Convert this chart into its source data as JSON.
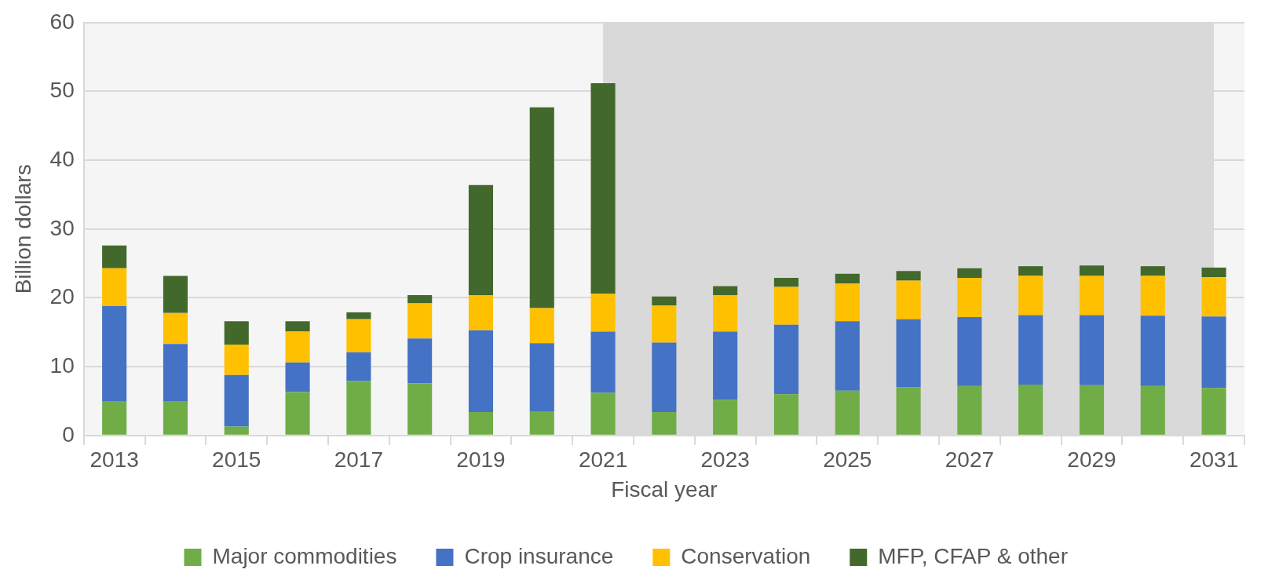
{
  "chart_data": {
    "type": "bar",
    "stacked": true,
    "xlabel": "Fiscal year",
    "ylabel": "Billion dollars",
    "categories": [
      "2013",
      null,
      "2015",
      null,
      "2017",
      null,
      "2019",
      null,
      "2021",
      null,
      "2023",
      null,
      "2025",
      null,
      "2027",
      null,
      "2029",
      null,
      "2031"
    ],
    "series": [
      {
        "name": "Major commodities",
        "color": "#70ad47",
        "values": [
          4.9,
          4.9,
          1.3,
          6.3,
          7.9,
          7.6,
          3.4,
          3.5,
          6.2,
          3.4,
          5.2,
          6.0,
          6.5,
          7.0,
          7.2,
          7.4,
          7.3,
          7.2,
          6.9
        ]
      },
      {
        "name": "Crop insurance",
        "color": "#4472c4",
        "values": [
          13.9,
          8.4,
          7.5,
          4.3,
          4.2,
          6.5,
          11.9,
          9.9,
          8.9,
          10.1,
          9.9,
          10.1,
          10.1,
          9.9,
          10.0,
          10.1,
          10.2,
          10.2,
          10.4
        ]
      },
      {
        "name": "Conservation",
        "color": "#ffc000",
        "values": [
          5.5,
          4.5,
          4.4,
          4.5,
          4.8,
          5.1,
          5.1,
          5.1,
          5.5,
          5.4,
          5.3,
          5.5,
          5.5,
          5.6,
          5.7,
          5.7,
          5.7,
          5.8,
          5.7
        ]
      },
      {
        "name": "MFP, CFAP & other",
        "color": "#43682b",
        "values": [
          3.3,
          5.4,
          3.4,
          1.5,
          1.0,
          1.2,
          16.0,
          29.2,
          30.6,
          1.3,
          1.3,
          1.3,
          1.4,
          1.4,
          1.4,
          1.4,
          1.5,
          1.4,
          1.4
        ]
      }
    ],
    "ylim": [
      0,
      60
    ],
    "yticks": [
      0,
      10,
      20,
      30,
      40,
      50,
      60
    ],
    "grid": "y",
    "legend": "bottom",
    "bands": [
      {
        "axis": "x",
        "from": "2021",
        "to": "2031",
        "color": "#d9d9d9"
      }
    ]
  }
}
